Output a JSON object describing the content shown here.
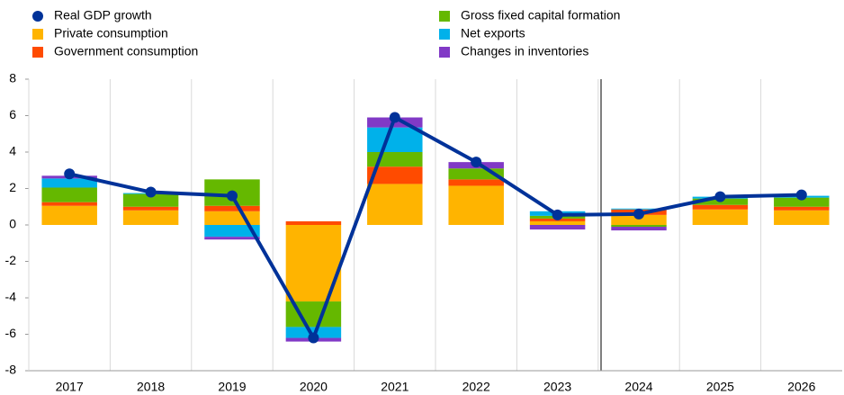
{
  "chart_data": {
    "type": "bar",
    "stacked": true,
    "categories": [
      "2017",
      "2018",
      "2019",
      "2020",
      "2021",
      "2022",
      "2023",
      "2024",
      "2025",
      "2026"
    ],
    "series": [
      {
        "name": "Private consumption",
        "color": "#ffb400",
        "values": [
          1.05,
          0.8,
          0.75,
          -4.2,
          2.25,
          2.15,
          0.2,
          0.55,
          0.85,
          0.8
        ]
      },
      {
        "name": "Government consumption",
        "color": "#ff4b00",
        "values": [
          0.2,
          0.2,
          0.3,
          0.2,
          0.95,
          0.35,
          0.15,
          0.3,
          0.25,
          0.2
        ]
      },
      {
        "name": "Gross fixed capital formation",
        "color": "#65b800",
        "values": [
          0.8,
          0.7,
          1.45,
          -1.4,
          0.8,
          0.6,
          0.15,
          -0.1,
          0.35,
          0.5
        ]
      },
      {
        "name": "Net exports",
        "color": "#00b1ea",
        "values": [
          0.5,
          0.05,
          -0.65,
          -0.6,
          1.35,
          0,
          0.25,
          0.05,
          0.1,
          0.1
        ]
      },
      {
        "name": "Changes in inventories",
        "color": "#8139c6",
        "values": [
          0.15,
          0,
          -0.15,
          -0.2,
          0.55,
          0.35,
          -0.25,
          -0.2,
          0,
          0
        ]
      }
    ],
    "line_series": {
      "name": "Real GDP growth",
      "color": "#003299",
      "values": [
        2.8,
        1.8,
        1.6,
        -6.2,
        5.9,
        3.45,
        0.55,
        0.6,
        1.55,
        1.65
      ]
    },
    "ylim": [
      -8,
      8
    ],
    "yticks": [
      -8,
      -6,
      -4,
      -2,
      0,
      2,
      4,
      6,
      8
    ],
    "grid": "x"
  }
}
